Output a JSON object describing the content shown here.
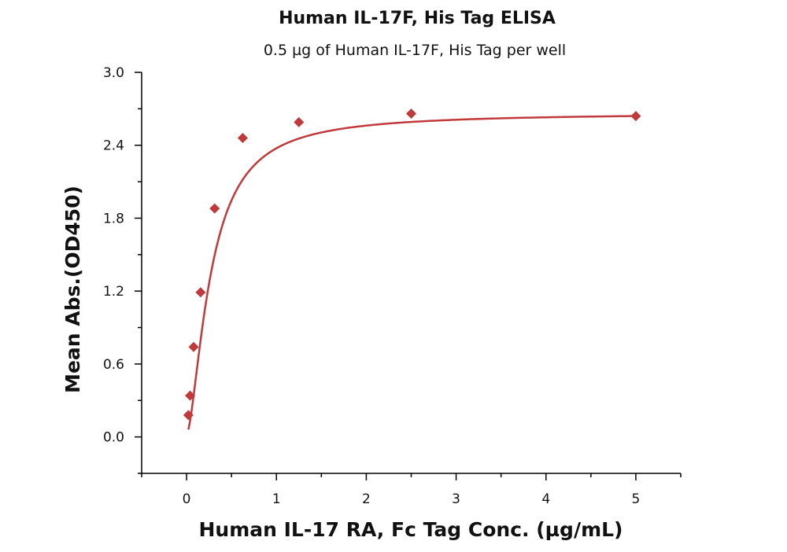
{
  "chart_data": {
    "type": "scatter",
    "title": "Human IL-17F, His Tag ELISA",
    "subtitle": "0.5 µg of Human IL-17F, His Tag per well",
    "xlabel": "Human IL-17 RA, Fc Tag Conc. (µg/mL)",
    "ylabel": "Mean Abs.(OD450)",
    "xlim": [
      -0.5,
      5.5
    ],
    "ylim": [
      -0.3,
      3.0
    ],
    "x_ticks": [
      0,
      1,
      2,
      3,
      4,
      5
    ],
    "x_tick_labels": [
      "0",
      "1",
      "2",
      "3",
      "4",
      "5"
    ],
    "y_ticks": [
      0.0,
      0.6,
      1.2,
      1.8,
      2.4,
      3.0
    ],
    "y_tick_labels": [
      "0.0",
      "0.6",
      "1.2",
      "1.8",
      "2.4",
      "3.0"
    ],
    "grid": false,
    "marker": "diamond",
    "color": "#c0393b",
    "series": [
      {
        "x": [
          0.02,
          0.039,
          0.078,
          0.156,
          0.3125,
          0.625,
          1.25,
          2.5,
          5.0
        ],
        "y": [
          0.18,
          0.34,
          0.74,
          1.19,
          1.88,
          2.46,
          2.59,
          2.66,
          2.64
        ]
      }
    ],
    "fit": "four-parameter logistic curve through the points"
  }
}
